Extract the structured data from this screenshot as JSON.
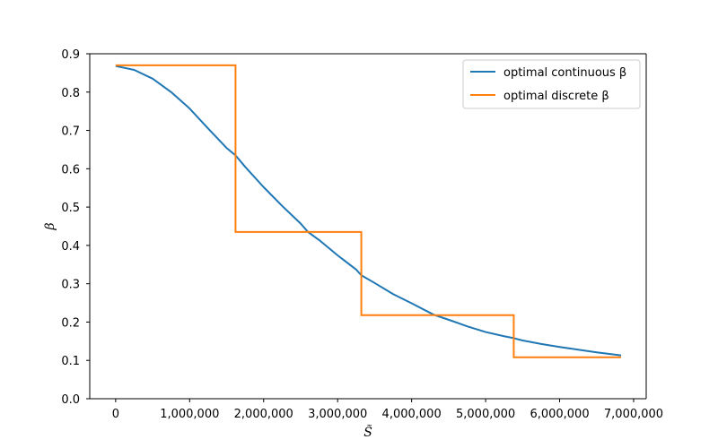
{
  "chart_data": {
    "type": "line",
    "title": "",
    "xlabel": "S̃",
    "ylabel": "β",
    "xlim": [
      -350000,
      7170000
    ],
    "ylim": [
      0,
      0.9
    ],
    "xticks": [
      0,
      1000000,
      2000000,
      3000000,
      4000000,
      5000000,
      6000000,
      7000000
    ],
    "xtick_labels": [
      "0",
      "1,000,000",
      "2,000,000",
      "3,000,000",
      "4,000,000",
      "5,000,000",
      "6,000,000",
      "7,000,000"
    ],
    "yticks": [
      0.0,
      0.1,
      0.2,
      0.3,
      0.4,
      0.5,
      0.6,
      0.7,
      0.8,
      0.9
    ],
    "ytick_labels": [
      "0.0",
      "0.1",
      "0.2",
      "0.3",
      "0.4",
      "0.5",
      "0.6",
      "0.7",
      "0.8",
      "0.9"
    ],
    "grid": false,
    "legend_position": "top-right",
    "series": [
      {
        "name": "optimal continuous β",
        "color": "#1f77b4",
        "style": "line",
        "points": [
          [
            0,
            0.868
          ],
          [
            250000,
            0.858
          ],
          [
            500000,
            0.835
          ],
          [
            750000,
            0.8
          ],
          [
            1000000,
            0.757
          ],
          [
            1250000,
            0.705
          ],
          [
            1500000,
            0.654
          ],
          [
            1620000,
            0.635
          ],
          [
            1750000,
            0.605
          ],
          [
            2000000,
            0.552
          ],
          [
            2250000,
            0.503
          ],
          [
            2500000,
            0.457
          ],
          [
            2600000,
            0.435
          ],
          [
            2750000,
            0.414
          ],
          [
            3000000,
            0.374
          ],
          [
            3250000,
            0.337
          ],
          [
            3320000,
            0.322
          ],
          [
            3500000,
            0.302
          ],
          [
            3750000,
            0.273
          ],
          [
            4000000,
            0.249
          ],
          [
            4300000,
            0.219
          ],
          [
            4500000,
            0.206
          ],
          [
            4750000,
            0.189
          ],
          [
            5000000,
            0.174
          ],
          [
            5250000,
            0.163
          ],
          [
            5380000,
            0.158
          ],
          [
            5500000,
            0.152
          ],
          [
            5750000,
            0.143
          ],
          [
            6000000,
            0.135
          ],
          [
            6250000,
            0.128
          ],
          [
            6500000,
            0.121
          ],
          [
            6830000,
            0.113
          ]
        ]
      },
      {
        "name": "optimal discrete β",
        "color": "#ff7f0e",
        "style": "step",
        "points": [
          [
            0,
            0.87
          ],
          [
            1620000,
            0.87
          ],
          [
            1620000,
            0.435
          ],
          [
            3320000,
            0.435
          ],
          [
            3320000,
            0.218
          ],
          [
            5380000,
            0.218
          ],
          [
            5380000,
            0.108
          ],
          [
            6830000,
            0.108
          ]
        ]
      }
    ]
  }
}
